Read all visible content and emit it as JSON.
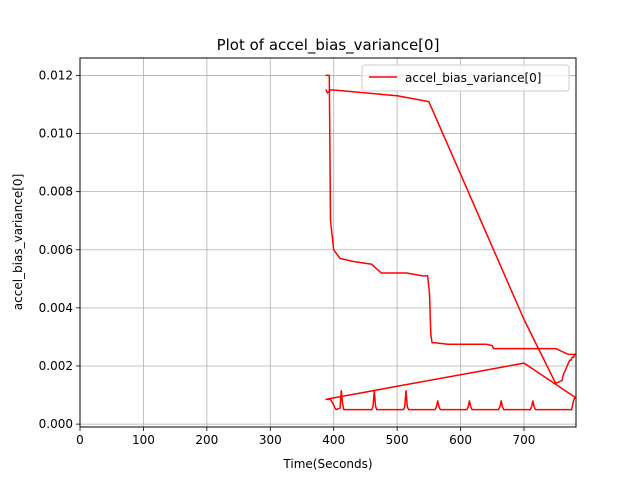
{
  "chart_data": {
    "type": "line",
    "title": "Plot of accel_bias_variance[0]",
    "xlabel": "Time(Seconds)",
    "ylabel": "accel_bias_variance[0]",
    "xlim": [
      0,
      782
    ],
    "ylim": [
      -0.0001,
      0.0126
    ],
    "xticks": [
      0,
      100,
      200,
      300,
      400,
      500,
      600,
      700
    ],
    "xtick_labels": [
      "0",
      "100",
      "200",
      "300",
      "400",
      "500",
      "600",
      "700"
    ],
    "yticks": [
      0.0,
      0.002,
      0.004,
      0.006,
      0.008,
      0.01,
      0.012
    ],
    "ytick_labels": [
      "0.000",
      "0.002",
      "0.004",
      "0.006",
      "0.008",
      "0.010",
      "0.012"
    ],
    "grid": true,
    "legend_position": "top-right",
    "series": [
      {
        "name": "accel_bias_variance[0]",
        "color": "#ff0000",
        "x": [
          388,
          393,
          395,
          400,
          410,
          430,
          460,
          465,
          475,
          480,
          485,
          500,
          515,
          540,
          548,
          551,
          553,
          555,
          560,
          580,
          600,
          620,
          640,
          650,
          652,
          670,
          700,
          710,
          720,
          730,
          740,
          750,
          760,
          770,
          780,
          782,
          780,
          778,
          776,
          774,
          772,
          770,
          768,
          766,
          764,
          762,
          760,
          750,
          700,
          650,
          600,
          550,
          500,
          450,
          400,
          395,
          390,
          388
        ],
        "y": [
          0.012,
          0.012,
          0.007,
          0.006,
          0.0057,
          0.0056,
          0.0055,
          0.0054,
          0.0052,
          0.0052,
          0.0052,
          0.0052,
          0.0052,
          0.0051,
          0.0051,
          0.0045,
          0.0031,
          0.0028,
          0.0028,
          0.00275,
          0.00275,
          0.00275,
          0.00275,
          0.0027,
          0.0026,
          0.0026,
          0.0026,
          0.0026,
          0.0026,
          0.0026,
          0.0026,
          0.0026,
          0.0025,
          0.0024,
          0.0024,
          0.0024,
          0.0024,
          0.0023,
          0.0023,
          0.0022,
          0.0022,
          0.0021,
          0.002,
          0.0019,
          0.0018,
          0.0017,
          0.0015,
          0.0014,
          0.0036,
          0.0061,
          0.0086,
          0.0111,
          0.0113,
          0.0114,
          0.0115,
          0.0115,
          0.0114,
          0.0115
        ]
      },
      {
        "name": "",
        "color": "#ff0000",
        "x": [
          388,
          395,
          400,
          402,
          404,
          410,
          412,
          414,
          416,
          430,
          440,
          450,
          460,
          462,
          464,
          466,
          468,
          480,
          490,
          500,
          510,
          512,
          514,
          516,
          518,
          530,
          540,
          550,
          560,
          562,
          564,
          566,
          568,
          580,
          590,
          600,
          610,
          612,
          614,
          616,
          618,
          630,
          640,
          650,
          660,
          662,
          664,
          666,
          668,
          680,
          690,
          700,
          710,
          712,
          714,
          716,
          718,
          730,
          740,
          750,
          760,
          770,
          775,
          778,
          780,
          782,
          700,
          600,
          500,
          450,
          400,
          388
        ],
        "y": [
          0.00085,
          0.00085,
          0.00065,
          0.00055,
          0.0005,
          0.00055,
          0.00115,
          0.0007,
          0.0005,
          0.0005,
          0.0005,
          0.0005,
          0.0005,
          0.0006,
          0.00115,
          0.0006,
          0.0005,
          0.0005,
          0.0005,
          0.0005,
          0.0005,
          0.0006,
          0.00115,
          0.0006,
          0.0005,
          0.0005,
          0.0005,
          0.0005,
          0.0005,
          0.0006,
          0.0008,
          0.0006,
          0.0005,
          0.0005,
          0.0005,
          0.0005,
          0.0005,
          0.0006,
          0.0008,
          0.0006,
          0.0005,
          0.0005,
          0.0005,
          0.0005,
          0.0005,
          0.0006,
          0.0008,
          0.0006,
          0.0005,
          0.0005,
          0.0005,
          0.0005,
          0.0005,
          0.0006,
          0.0008,
          0.0006,
          0.0005,
          0.0005,
          0.0005,
          0.0005,
          0.0005,
          0.0005,
          0.0005,
          0.0008,
          0.0009,
          0.0009,
          0.0021,
          0.0017,
          0.0013,
          0.0011,
          0.0009,
          0.00085
        ]
      }
    ]
  }
}
